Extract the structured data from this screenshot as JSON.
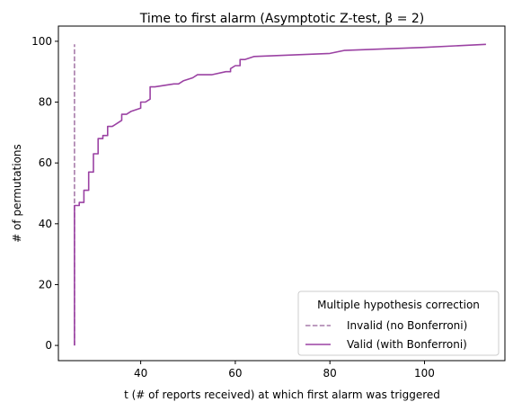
{
  "chart_data": {
    "type": "line",
    "title": "Time to first alarm (Asymptotic Z-test, β = 2)",
    "xlabel": "t (# of reports received) at which first alarm was triggered",
    "ylabel": "# of permutations",
    "xlim": [
      22.6,
      117.0
    ],
    "ylim": [
      -5,
      105
    ],
    "xticks": [
      40,
      60,
      80,
      100
    ],
    "yticks": [
      0,
      20,
      40,
      60,
      80,
      100
    ],
    "grid": false,
    "legend": {
      "title": "Multiple hypothesis correction",
      "placement": "lower-right"
    },
    "series": [
      {
        "name": "Invalid (no Bonferroni)",
        "style": "dashed",
        "color": "#a77caa",
        "points": [
          [
            26,
            0
          ],
          [
            26,
            99
          ]
        ]
      },
      {
        "name": "Valid (with Bonferroni)",
        "style": "solid",
        "color": "#9b42a3",
        "points": [
          [
            26,
            0
          ],
          [
            26,
            46
          ],
          [
            27,
            46
          ],
          [
            27,
            47
          ],
          [
            28,
            47
          ],
          [
            28,
            51
          ],
          [
            29,
            51
          ],
          [
            29,
            52
          ],
          [
            29,
            57
          ],
          [
            30,
            57
          ],
          [
            30,
            58
          ],
          [
            30,
            63
          ],
          [
            31,
            63
          ],
          [
            31,
            64
          ],
          [
            31,
            68
          ],
          [
            32,
            68
          ],
          [
            32,
            69
          ],
          [
            33,
            69
          ],
          [
            33,
            70
          ],
          [
            33,
            72
          ],
          [
            34,
            72
          ],
          [
            35,
            73
          ],
          [
            36,
            74
          ],
          [
            36,
            76
          ],
          [
            37,
            76
          ],
          [
            38,
            77
          ],
          [
            40,
            78
          ],
          [
            40,
            80
          ],
          [
            41,
            80
          ],
          [
            42,
            81
          ],
          [
            42,
            85
          ],
          [
            43,
            85
          ],
          [
            47,
            86
          ],
          [
            48,
            86
          ],
          [
            49,
            87
          ],
          [
            51,
            88
          ],
          [
            52,
            89
          ],
          [
            55,
            89
          ],
          [
            58,
            90
          ],
          [
            59,
            90
          ],
          [
            59,
            91
          ],
          [
            60,
            92
          ],
          [
            61,
            92
          ],
          [
            61,
            94
          ],
          [
            62,
            94
          ],
          [
            64,
            95
          ],
          [
            80,
            96
          ],
          [
            83,
            97
          ],
          [
            100,
            98
          ],
          [
            113,
            99
          ]
        ]
      }
    ]
  }
}
